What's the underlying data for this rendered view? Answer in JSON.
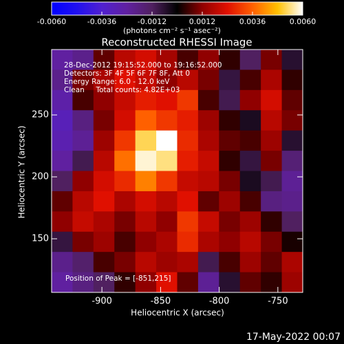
{
  "chart_data": {
    "type": "heatmap",
    "title": "Reconstructed RHESSI Image",
    "colorbar_label": "(photons cm⁻² s⁻¹ asec⁻²)",
    "xlabel": "Heliocentric X (arcsec)",
    "ylabel": "Heliocentric Y (arcsec)",
    "annotations": [
      "28-Dec-2012 19:15:52.000 to 19:16:52.000",
      "Detectors: 3F 4F 5F 6F 7F 8F, Att 0",
      "Energy Range: 6.0 - 12.0 keV",
      "Clean     Total counts: 4.82E+03"
    ],
    "peak_label": "Position of Peak = [-851,215]",
    "footer": "17-May-2022 00:07",
    "xlim": [
      -942.9,
      -728.8
    ],
    "ylim": [
      106.7,
      302.8
    ],
    "xticks": [
      -900,
      -850,
      -800,
      -750
    ],
    "yticks": [
      150,
      200,
      250
    ],
    "zlim": [
      -0.006,
      0.006
    ],
    "colorbar_ticks": [
      {
        "value": -0.006,
        "label": "-0.0060"
      },
      {
        "value": -0.0036,
        "label": "-0.0036"
      },
      {
        "value": -0.0012,
        "label": "-0.0012"
      },
      {
        "value": 0.0012,
        "label": "0.0012"
      },
      {
        "value": 0.0036,
        "label": "0.0036"
      },
      {
        "value": 0.006,
        "label": "0.0060"
      }
    ],
    "colormap": [
      "#0000ff",
      "#2010f0",
      "#5020d0",
      "#6020a0",
      "#502060",
      "#000000",
      "#900000",
      "#e01000",
      "#ff6000",
      "#ffc000",
      "#ffffff"
    ],
    "z": [
      [
        -0.0024,
        -0.002,
        0.0008,
        0.0018,
        0.0022,
        0.0015,
        0.0006,
        0.0012,
        0.0004,
        -0.0012,
        0.001,
        -0.0006
      ],
      [
        -0.002,
        0.001,
        0.0016,
        0.0024,
        0.002,
        0.0012,
        0.0018,
        0.001,
        -0.0008,
        0.0006,
        0.0016,
        0.0004
      ],
      [
        -0.0026,
        0.0006,
        0.0012,
        0.002,
        0.0026,
        0.0024,
        0.003,
        0.0006,
        -0.001,
        0.0012,
        0.0022,
        0.0008
      ],
      [
        -0.003,
        -0.0018,
        0.001,
        0.0022,
        0.0036,
        0.003,
        0.0026,
        0.0014,
        0.0004,
        -0.0004,
        0.0018,
        0.001
      ],
      [
        -0.0028,
        -0.0022,
        0.0014,
        0.003,
        0.0052,
        0.006,
        0.0028,
        0.0016,
        0.0008,
        0.0006,
        0.0014,
        -0.0006
      ],
      [
        -0.0024,
        -0.001,
        0.0018,
        0.0038,
        0.0058,
        0.0054,
        0.0026,
        0.002,
        0.0004,
        -0.0008,
        0.001,
        -0.0016
      ],
      [
        -0.0012,
        0.0012,
        0.0022,
        0.0028,
        0.004,
        0.003,
        0.002,
        0.0018,
        0.001,
        -0.0004,
        -0.001,
        -0.0022
      ],
      [
        0.0008,
        0.0018,
        0.0024,
        0.0016,
        0.0022,
        0.0018,
        0.0024,
        0.0008,
        0.0014,
        0.0006,
        -0.0018,
        -0.002
      ],
      [
        0.0012,
        0.002,
        0.0016,
        0.001,
        0.0018,
        0.0012,
        0.003,
        0.002,
        0.001,
        0.0014,
        0.0004,
        -0.0012
      ],
      [
        -0.0008,
        0.001,
        0.0014,
        0.0006,
        0.0012,
        0.0016,
        0.0028,
        0.0016,
        0.0012,
        0.0018,
        0.001,
        0.0002
      ],
      [
        -0.002,
        -0.0014,
        0.0006,
        0.001,
        0.0018,
        0.0014,
        0.0016,
        -0.001,
        0.0006,
        0.0014,
        0.0008,
        0.0016
      ],
      [
        -0.0024,
        -0.0018,
        -0.0012,
        0.0004,
        0.0012,
        0.0024,
        0.0008,
        -0.0022,
        -0.0006,
        0.0008,
        0.0004,
        0.0014
      ]
    ]
  }
}
